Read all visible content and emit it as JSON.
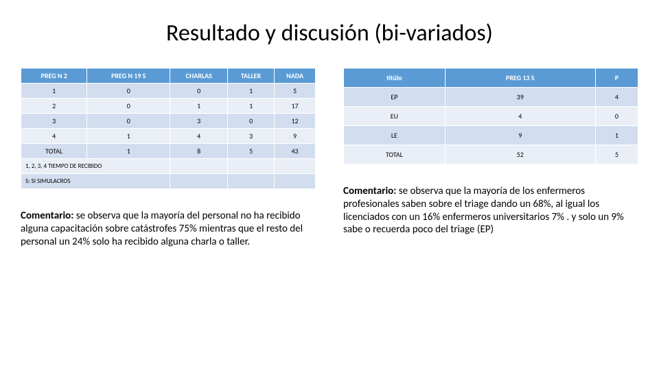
{
  "title": "Resultado y discusión (bi-variados)",
  "colors": {
    "header_bg": "#5b9bd5",
    "header_fg": "#ffffff",
    "row_dark": "#d2deef",
    "row_light": "#eaeff7",
    "border": "#ffffff",
    "text": "#000000",
    "page_bg": "#ffffff"
  },
  "left_table": {
    "columns": [
      "PREG N 2",
      "PREG N 19 S",
      "CHARLAS",
      "TALLER",
      "NADA"
    ],
    "rows": [
      [
        "1",
        "0",
        "0",
        "1",
        "5"
      ],
      [
        "2",
        "0",
        "1",
        "1",
        "17"
      ],
      [
        "3",
        "0",
        "3",
        "0",
        "12"
      ],
      [
        "4",
        "1",
        "4",
        "3",
        "9"
      ],
      [
        "TOTAL",
        "1",
        "8",
        "5",
        "43"
      ]
    ],
    "footers": [
      "1, 2, 3, 4 TIEMPO DE RECIBIDO",
      "S: SI SIMULACROS"
    ]
  },
  "right_table": {
    "columns": [
      "titúlo",
      "PREG 13   S",
      "P"
    ],
    "rows": [
      [
        "EP",
        "39",
        "4"
      ],
      [
        "EU",
        "4",
        "0"
      ],
      [
        "LE",
        "9",
        "1"
      ],
      [
        "TOTAL",
        "52",
        "5"
      ]
    ]
  },
  "left_comment": {
    "label": "Comentario:",
    "text": " se observa que la mayoría del personal no ha recibido alguna capacitación sobre catástrofes 75% mientras que el resto del  personal  un 24% solo ha recibido alguna charla o taller."
  },
  "right_comment": {
    "label": "Comentario:",
    "text": " se observa que la mayoría de los enfermeros profesionales saben sobre el triage dando un 68%, al igual los licenciados con un 16%  enfermeros universitarios 7% . y solo un 9% sabe o recuerda poco del triage (EP)"
  },
  "fonts": {
    "title_size": 34,
    "table_size": 10,
    "comment_size": 15
  }
}
